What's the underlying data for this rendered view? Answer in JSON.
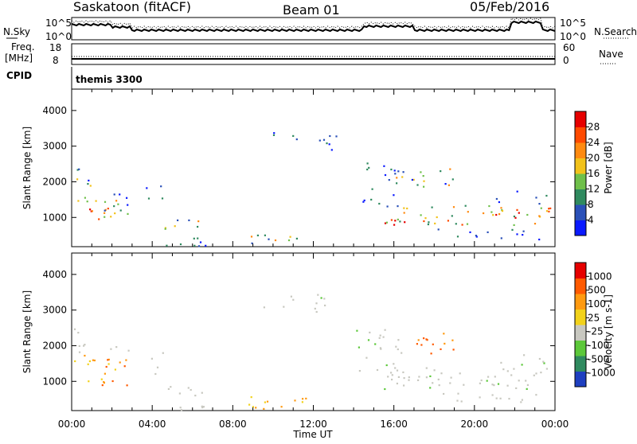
{
  "header": {
    "station": "Saskatoon (fitACF)",
    "beam": "Beam 01",
    "date": "05/Feb/2016"
  },
  "top_panels": {
    "nsky_label": "N.Sky",
    "nsky_ticks": [
      "10^5",
      "10^0"
    ],
    "nsearch_label": "N.Search",
    "nsearch_ticks": [
      "10^5",
      "10^0"
    ],
    "freq_label_1": "Freq.",
    "freq_label_2": "[MHz]",
    "freq_ticks": [
      "18",
      "8"
    ],
    "nave_label": "Nave",
    "nave_ticks": [
      "60",
      "0"
    ],
    "cpid_label": "CPID",
    "cpid_value": "themis 3300"
  },
  "chart_data": [
    {
      "type": "heatmap",
      "title": "",
      "xlabel": "Time UT",
      "ylabel": "Slant Range [km]",
      "x_ticks": [
        "00:00",
        "04:00",
        "08:00",
        "12:00",
        "16:00",
        "20:00",
        "00:00"
      ],
      "y_ticks": [
        "1000",
        "2000",
        "3000",
        "4000"
      ],
      "xlim_hours": [
        0,
        24
      ],
      "ylim_km": [
        180,
        4600
      ],
      "colorbar": {
        "label": "Power [dB]",
        "ticks": [
          "4",
          "8",
          "12",
          "16",
          "20",
          "24",
          "28"
        ],
        "range": [
          0,
          30
        ],
        "colors": [
          "#0a1aff",
          "#2a50b8",
          "#2f8a5f",
          "#6fc04a",
          "#f2c21a",
          "#ff8a10",
          "#ff4a00",
          "#e60000"
        ]
      }
    },
    {
      "type": "heatmap",
      "title": "",
      "xlabel": "Time UT",
      "ylabel": "Slant Range [km]",
      "x_ticks": [
        "00:00",
        "04:00",
        "08:00",
        "12:00",
        "16:00",
        "20:00",
        "00:00"
      ],
      "y_ticks": [
        "1000",
        "2000",
        "3000",
        "4000"
      ],
      "xlim_hours": [
        0,
        24
      ],
      "ylim_km": [
        180,
        4600
      ],
      "colorbar": {
        "label": "Velocity [m s-1]",
        "ticks": [
          "1000",
          "500",
          "100",
          "25",
          "-25",
          "-100",
          "-500",
          "-1000"
        ],
        "colors": [
          "#1e3fc0",
          "#2f8a5f",
          "#5cc83a",
          "#c8c8c0",
          "#f2d21a",
          "#ff9a10",
          "#ff5a00",
          "#e60000"
        ]
      }
    }
  ]
}
